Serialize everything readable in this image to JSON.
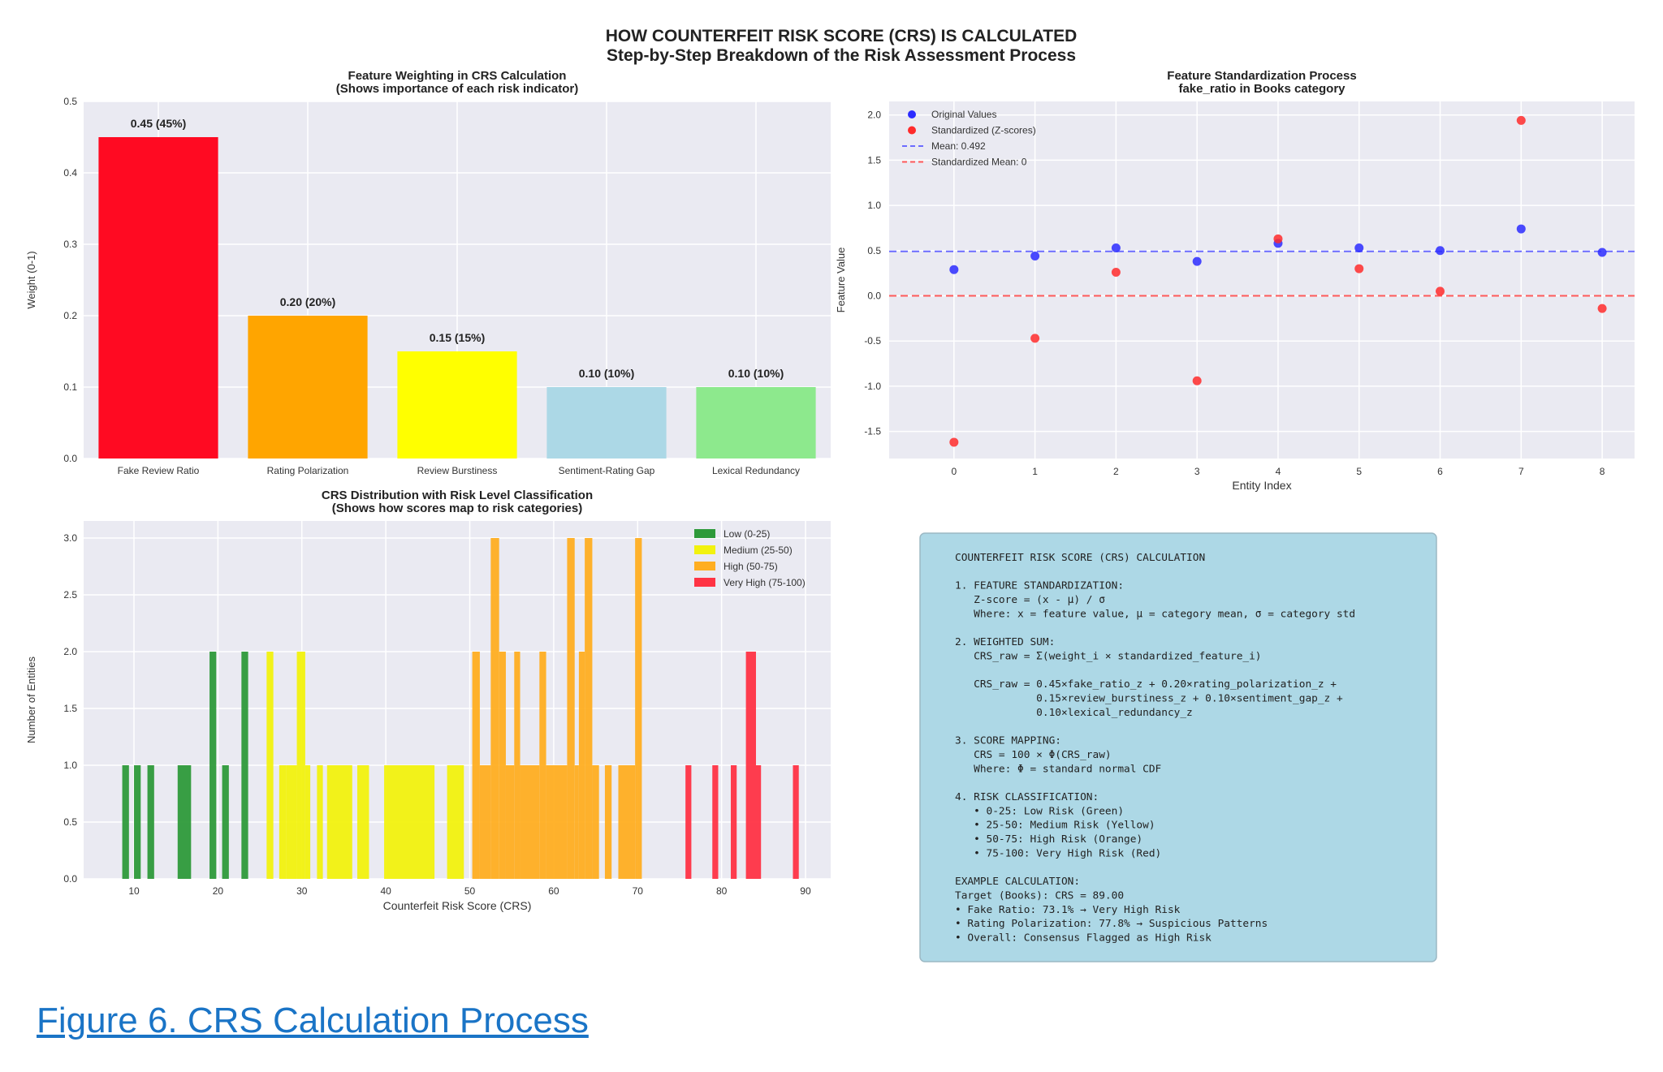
{
  "figure": {
    "title": "HOW COUNTERFEIT RISK SCORE (CRS) IS CALCULATED",
    "subtitle": "Step-by-Step Breakdown of the Risk Assessment Process",
    "caption": "Figure 6. CRS Calculation Process"
  },
  "chart_data": [
    {
      "type": "bar",
      "title": "Feature Weighting in CRS Calculation",
      "subtitle": "(Shows importance of each risk indicator)",
      "xlabel": "",
      "ylabel": "Weight (0-1)",
      "ylim": [
        0,
        0.5
      ],
      "yticks": [
        "0.0",
        "0.1",
        "0.2",
        "0.3",
        "0.4",
        "0.5"
      ],
      "grid": true,
      "categories": [
        "Fake Review Ratio",
        "Rating Polarization",
        "Review Burstiness",
        "Sentiment-Rating Gap",
        "Lexical Redundancy"
      ],
      "values": [
        0.45,
        0.2,
        0.15,
        0.1,
        0.1
      ],
      "data_labels": [
        "0.45 (45%)",
        "0.20 (20%)",
        "0.15 (15%)",
        "0.10 (10%)",
        "0.10 (10%)"
      ],
      "colors": [
        "#ff0a22",
        "#ffa500",
        "#ffff00",
        "#acd8e6",
        "#8de98d"
      ]
    },
    {
      "type": "scatter",
      "title": "Feature Standardization Process",
      "subtitle": "fake_ratio in Books category",
      "xlabel": "Entity Index",
      "ylabel": "Feature Value",
      "xlim": [
        -0.8,
        8.4
      ],
      "ylim": [
        -1.8,
        2.15
      ],
      "xticks": [
        "0",
        "1",
        "2",
        "3",
        "4",
        "5",
        "6",
        "7",
        "8"
      ],
      "yticks": [
        "-1.5",
        "-1.0",
        "-0.5",
        "0.0",
        "0.5",
        "1.0",
        "1.5",
        "2.0"
      ],
      "grid": true,
      "legend_position": "top-left",
      "series": [
        {
          "name": "Original Values",
          "color": "#2b2bff",
          "x": [
            0,
            1,
            2,
            3,
            4,
            5,
            6,
            7,
            8
          ],
          "y": [
            0.29,
            0.44,
            0.53,
            0.38,
            0.58,
            0.53,
            0.5,
            0.74,
            0.48
          ]
        },
        {
          "name": "Standardized (Z-scores)",
          "color": "#ff2b2b",
          "x": [
            0,
            1,
            2,
            3,
            4,
            5,
            6,
            7,
            8
          ],
          "y": [
            -1.62,
            -0.47,
            0.26,
            -0.94,
            0.63,
            0.3,
            0.05,
            1.94,
            -0.14
          ]
        }
      ],
      "reference_lines": [
        {
          "name": "Mean: 0.492",
          "y": 0.492,
          "color": "#6b6bff"
        },
        {
          "name": "Standardized Mean: 0",
          "y": 0,
          "color": "#ff5a5a"
        }
      ]
    },
    {
      "type": "bar",
      "subtype": "histogram",
      "title": "CRS Distribution with Risk Level Classification",
      "subtitle": "(Shows how scores map to risk categories)",
      "xlabel": "Counterfeit Risk Score (CRS)",
      "ylabel": "Number of Entities",
      "xlim": [
        4,
        93
      ],
      "ylim": [
        0,
        3.15
      ],
      "xticks": [
        "10",
        "20",
        "30",
        "40",
        "50",
        "60",
        "70",
        "80",
        "90"
      ],
      "yticks": [
        "0.0",
        "0.5",
        "1.0",
        "1.5",
        "2.0",
        "2.5",
        "3.0"
      ],
      "grid": true,
      "legend_position": "top-right",
      "legend": [
        {
          "label": "Low (0-25)",
          "color": "#2e9a3a"
        },
        {
          "label": "Medium (25-50)",
          "color": "#f2f20e"
        },
        {
          "label": "High (50-75)",
          "color": "#ffae21"
        },
        {
          "label": "Very High (75-100)",
          "color": "#ff3344"
        }
      ],
      "bins": [
        {
          "x0": 8.6,
          "x1": 9.4,
          "count": 1,
          "level": "low"
        },
        {
          "x0": 10.0,
          "x1": 10.8,
          "count": 1,
          "level": "low"
        },
        {
          "x0": 11.6,
          "x1": 12.4,
          "count": 1,
          "level": "low"
        },
        {
          "x0": 15.2,
          "x1": 16.8,
          "count": 1,
          "level": "low"
        },
        {
          "x0": 19.0,
          "x1": 19.8,
          "count": 2,
          "level": "low"
        },
        {
          "x0": 20.5,
          "x1": 21.3,
          "count": 1,
          "level": "low"
        },
        {
          "x0": 22.8,
          "x1": 23.6,
          "count": 2,
          "level": "low"
        },
        {
          "x0": 25.8,
          "x1": 26.6,
          "count": 2,
          "level": "medium"
        },
        {
          "x0": 27.3,
          "x1": 28.1,
          "count": 1,
          "level": "medium"
        },
        {
          "x0": 28.1,
          "x1": 29.4,
          "count": 1,
          "level": "medium"
        },
        {
          "x0": 29.4,
          "x1": 30.4,
          "count": 2,
          "level": "medium"
        },
        {
          "x0": 30.4,
          "x1": 31.0,
          "count": 1,
          "level": "medium"
        },
        {
          "x0": 31.8,
          "x1": 32.5,
          "count": 1,
          "level": "medium"
        },
        {
          "x0": 33.0,
          "x1": 36.0,
          "count": 1,
          "level": "medium"
        },
        {
          "x0": 36.6,
          "x1": 38.0,
          "count": 1,
          "level": "medium"
        },
        {
          "x0": 39.8,
          "x1": 45.8,
          "count": 1,
          "level": "medium"
        },
        {
          "x0": 47.3,
          "x1": 49.3,
          "count": 1,
          "level": "medium"
        },
        {
          "x0": 50.3,
          "x1": 51.2,
          "count": 2,
          "level": "high"
        },
        {
          "x0": 51.2,
          "x1": 52.5,
          "count": 1,
          "level": "high"
        },
        {
          "x0": 52.5,
          "x1": 53.5,
          "count": 3,
          "level": "high"
        },
        {
          "x0": 53.5,
          "x1": 54.3,
          "count": 2,
          "level": "high"
        },
        {
          "x0": 54.3,
          "x1": 55.3,
          "count": 1,
          "level": "high"
        },
        {
          "x0": 55.3,
          "x1": 56.0,
          "count": 2,
          "level": "high"
        },
        {
          "x0": 56.0,
          "x1": 58.3,
          "count": 1,
          "level": "high"
        },
        {
          "x0": 58.3,
          "x1": 59.1,
          "count": 2,
          "level": "high"
        },
        {
          "x0": 59.1,
          "x1": 61.6,
          "count": 1,
          "level": "high"
        },
        {
          "x0": 61.6,
          "x1": 62.5,
          "count": 3,
          "level": "high"
        },
        {
          "x0": 62.5,
          "x1": 63.0,
          "count": 1,
          "level": "high"
        },
        {
          "x0": 63.0,
          "x1": 63.7,
          "count": 2,
          "level": "high"
        },
        {
          "x0": 63.7,
          "x1": 64.6,
          "count": 3,
          "level": "high"
        },
        {
          "x0": 64.6,
          "x1": 65.4,
          "count": 1,
          "level": "high"
        },
        {
          "x0": 66.1,
          "x1": 66.9,
          "count": 1,
          "level": "high"
        },
        {
          "x0": 67.7,
          "x1": 69.7,
          "count": 1,
          "level": "high"
        },
        {
          "x0": 69.7,
          "x1": 70.5,
          "count": 3,
          "level": "high"
        },
        {
          "x0": 75.7,
          "x1": 76.4,
          "count": 1,
          "level": "veryhigh"
        },
        {
          "x0": 78.9,
          "x1": 79.6,
          "count": 1,
          "level": "veryhigh"
        },
        {
          "x0": 81.1,
          "x1": 81.8,
          "count": 1,
          "level": "veryhigh"
        },
        {
          "x0": 82.9,
          "x1": 84.1,
          "count": 2,
          "level": "veryhigh"
        },
        {
          "x0": 84.1,
          "x1": 84.7,
          "count": 1,
          "level": "veryhigh"
        },
        {
          "x0": 88.5,
          "x1": 89.2,
          "count": 1,
          "level": "veryhigh"
        }
      ]
    }
  ],
  "textbox": {
    "lines": [
      "COUNTERFEIT RISK SCORE (CRS) CALCULATION",
      "",
      "1. FEATURE STANDARDIZATION:",
      "   Z-score = (x - μ) / σ",
      "   Where: x = feature value, μ = category mean, σ = category std",
      "",
      "2. WEIGHTED SUM:",
      "   CRS_raw = Σ(weight_i × standardized_feature_i)",
      "",
      "   CRS_raw = 0.45×fake_ratio_z + 0.20×rating_polarization_z +",
      "             0.15×review_burstiness_z + 0.10×sentiment_gap_z +",
      "             0.10×lexical_redundancy_z",
      "",
      "3. SCORE MAPPING:",
      "   CRS = 100 × Φ(CRS_raw)",
      "   Where: Φ = standard normal CDF",
      "",
      "4. RISK CLASSIFICATION:",
      "   • 0-25: Low Risk (Green)",
      "   • 25-50: Medium Risk (Yellow)",
      "   • 50-75: High Risk (Orange)",
      "   • 75-100: Very High Risk (Red)",
      "",
      "EXAMPLE CALCULATION:",
      "Target (Books): CRS = 89.00",
      "• Fake Ratio: 73.1% → Very High Risk",
      "• Rating Polarization: 77.8% → Suspicious Patterns",
      "• Overall: Consensus Flagged as High Risk"
    ]
  }
}
